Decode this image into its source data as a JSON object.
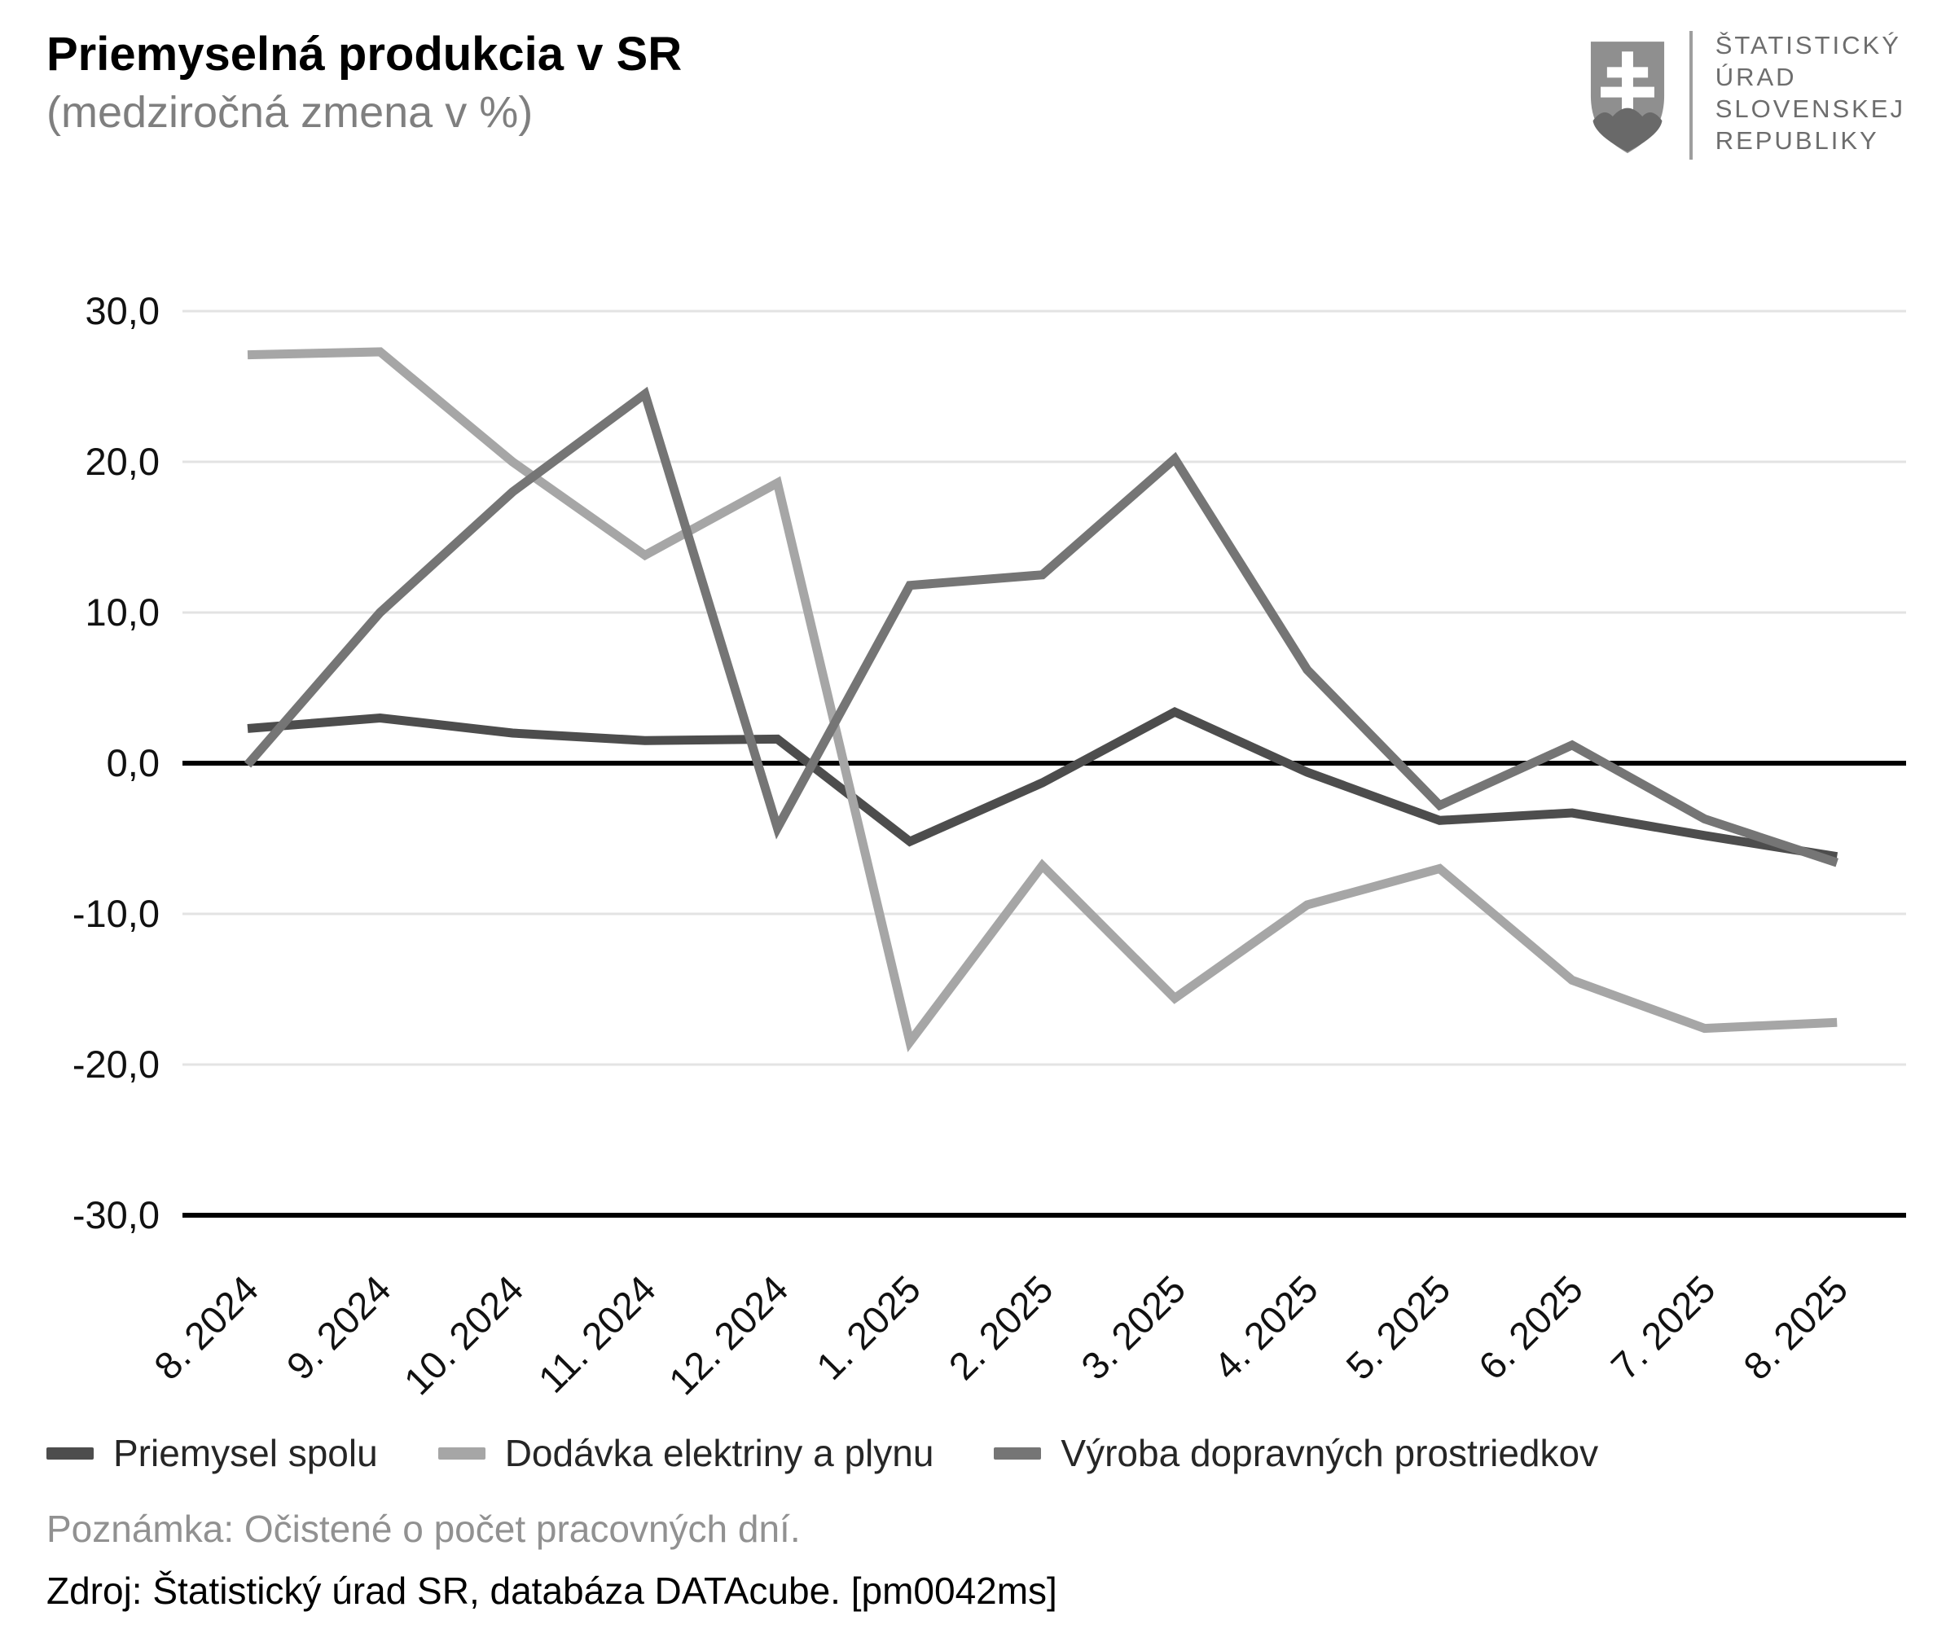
{
  "header": {
    "title": "Priemyselná produkcia v SR",
    "subtitle": "(medziročná zmena v %)"
  },
  "logo": {
    "emblem": "slovak-coat-of-arms",
    "org_lines": [
      "ŠTATISTICKÝ",
      "ÚRAD",
      "SLOVENSKEJ",
      "REPUBLIKY"
    ]
  },
  "chart_data": {
    "type": "line",
    "title": "Priemyselná produkcia v SR",
    "subtitle": "(medziročná zmena v %)",
    "categories": [
      "8. 2024",
      "9. 2024",
      "10. 2024",
      "11. 2024",
      "12. 2024",
      "1. 2025",
      "2. 2025",
      "3. 2025",
      "4. 2025",
      "5. 2025",
      "6. 2025",
      "7. 2025",
      "8. 2025"
    ],
    "series": [
      {
        "name": "Priemysel spolu",
        "color": "#4d4d4d",
        "values": [
          2.3,
          3.0,
          2.0,
          1.5,
          1.6,
          -5.2,
          -1.3,
          3.4,
          -0.6,
          -3.8,
          -3.3,
          -4.8,
          -6.2
        ]
      },
      {
        "name": "Dodávka elektriny a plynu",
        "color": "#a6a6a6",
        "values": [
          27.1,
          27.3,
          20.0,
          13.8,
          18.6,
          -18.5,
          -6.8,
          -15.6,
          -9.4,
          -7.0,
          -14.4,
          -17.6,
          -17.2
        ]
      },
      {
        "name": "Výroba dopravných prostriedkov",
        "color": "#757575",
        "values": [
          -0.1,
          10.0,
          18.0,
          24.5,
          -4.3,
          11.8,
          12.5,
          20.2,
          6.2,
          -2.8,
          1.2,
          -3.7,
          -6.6
        ]
      }
    ],
    "ylim": [
      -30,
      30
    ],
    "ytick_values": [
      30,
      20,
      10,
      0,
      -10,
      -20,
      -30
    ],
    "ytick_labels": [
      "30,0",
      "20,0",
      "10,0",
      "0,0",
      "-10,0",
      "-20,0",
      "-30,0"
    ],
    "grid": "horizontal",
    "zero_line": true,
    "baseline_value": -30,
    "legend_position": "bottom",
    "x_label_rotation_deg": -45
  },
  "footer": {
    "note": "Poznámka: Očistené o počet pracovných dní.",
    "source": "Zdroj: Štatistický úrad SR, databáza DATAcube. [pm0042ms]"
  }
}
